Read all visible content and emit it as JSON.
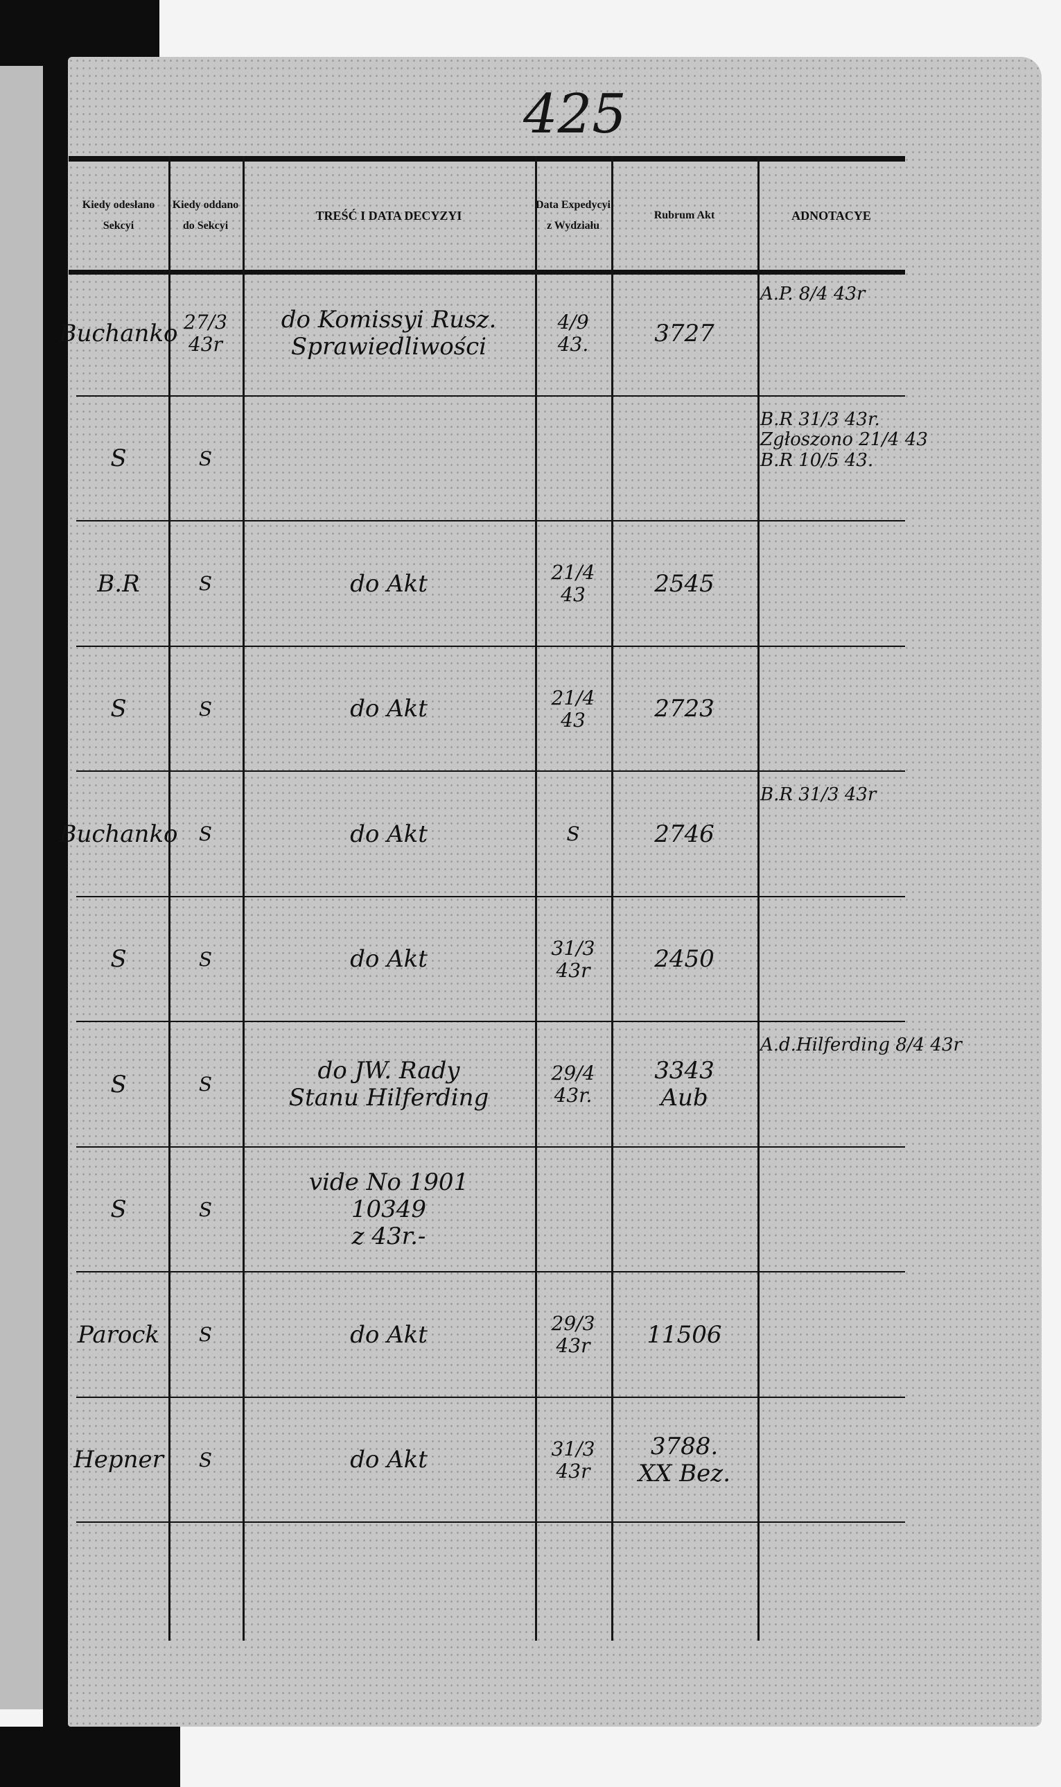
{
  "page_number": "425",
  "headers": [
    "Kiedy odesłano Sekcyi",
    "Kiedy oddano do Sekcyi",
    "TREŚĆ I DATA DECYZYI",
    "Data Expedycyi z Wydziału",
    "Rubrum Akt",
    "ADNOTACYE"
  ],
  "rows": [
    {
      "sent": "Buchanko",
      "given": "27/3\n43r",
      "content": "do Komissyi Rusz.\nSprawiedliwości",
      "date": "4/9\n43.",
      "rubrum": "3727",
      "note": "A.P. 8/4 43r"
    },
    {
      "sent": "S",
      "given": "S",
      "content": "",
      "date": "",
      "rubrum": "",
      "note": "B.R 31/3 43r.\nZgłoszono 21/4 43\nB.R 10/5 43."
    },
    {
      "sent": "B.R",
      "given": "S",
      "content": "do Akt",
      "date": "21/4\n43",
      "rubrum": "2545",
      "note": ""
    },
    {
      "sent": "S",
      "given": "S",
      "content": "do Akt",
      "date": "21/4\n43",
      "rubrum": "2723",
      "note": ""
    },
    {
      "sent": "Buchanko",
      "given": "S",
      "content": "do Akt",
      "date": "S",
      "rubrum": "2746",
      "note": "B.R 31/3 43r"
    },
    {
      "sent": "S",
      "given": "S",
      "content": "do Akt",
      "date": "31/3\n43r",
      "rubrum": "2450",
      "note": ""
    },
    {
      "sent": "S",
      "given": "S",
      "content": "do JW. Rady\nStanu Hilferding",
      "date": "29/4\n43r.",
      "rubrum": "3343\nAub",
      "note": "A.d.Hilferding 8/4 43r"
    },
    {
      "sent": "S",
      "given": "S",
      "content": "vide No 1901\n10349\nz 43r.-",
      "date": "",
      "rubrum": "",
      "note": ""
    },
    {
      "sent": "Parock",
      "given": "S",
      "content": "do Akt",
      "date": "29/3\n43r",
      "rubrum": "11506",
      "note": ""
    },
    {
      "sent": "Hepner",
      "given": "S",
      "content": "do Akt",
      "date": "31/3\n43r",
      "rubrum": "3788.\nXX Bez.",
      "note": ""
    }
  ]
}
